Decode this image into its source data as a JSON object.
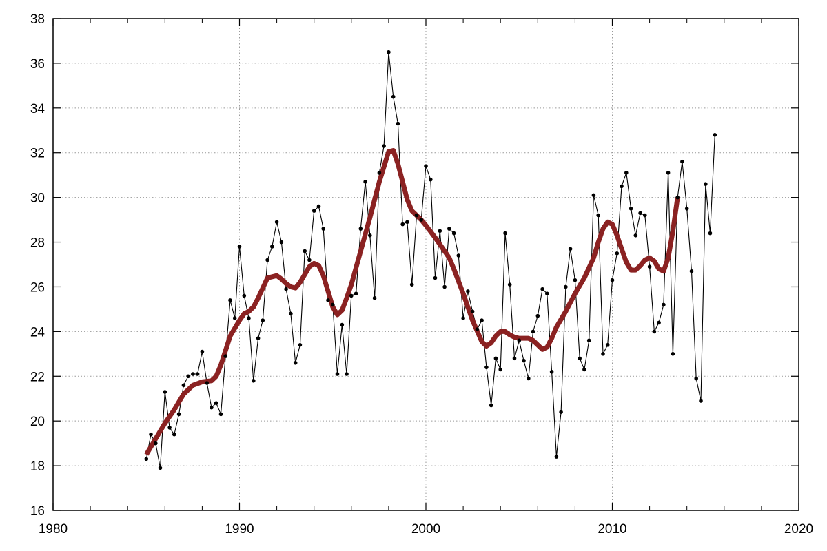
{
  "chart_data": {
    "type": "line",
    "title": "",
    "xlabel": "",
    "ylabel": "",
    "xlim": [
      1980,
      2020
    ],
    "ylim": [
      16,
      38
    ],
    "x_ticks": [
      1980,
      1990,
      2000,
      2010,
      2020
    ],
    "y_ticks": [
      16,
      18,
      20,
      22,
      24,
      26,
      28,
      30,
      32,
      34,
      36,
      38
    ],
    "x_tick_labels": [
      "1980",
      "1990",
      "2000",
      "2010",
      "2020"
    ],
    "y_tick_labels": [
      "16",
      "18",
      "20",
      "22",
      "24",
      "26",
      "28",
      "30",
      "32",
      "34",
      "36",
      "38"
    ],
    "grid": true,
    "legend": "none",
    "series": [
      {
        "style": "thin black line with dot markers",
        "color": "#000000",
        "points": [
          [
            1985.0,
            18.3
          ],
          [
            1985.25,
            19.4
          ],
          [
            1985.5,
            19.0
          ],
          [
            1985.75,
            17.9
          ],
          [
            1986.0,
            21.3
          ],
          [
            1986.25,
            19.7
          ],
          [
            1986.5,
            19.4
          ],
          [
            1986.75,
            20.3
          ],
          [
            1987.0,
            21.6
          ],
          [
            1987.25,
            22.0
          ],
          [
            1987.5,
            22.1
          ],
          [
            1987.75,
            22.1
          ],
          [
            1988.0,
            23.1
          ],
          [
            1988.25,
            21.7
          ],
          [
            1988.5,
            20.6
          ],
          [
            1988.75,
            20.8
          ],
          [
            1989.0,
            20.3
          ],
          [
            1989.25,
            22.9
          ],
          [
            1989.5,
            25.4
          ],
          [
            1989.75,
            24.6
          ],
          [
            1990.0,
            27.8
          ],
          [
            1990.25,
            25.6
          ],
          [
            1990.5,
            24.6
          ],
          [
            1990.75,
            21.8
          ],
          [
            1991.0,
            23.7
          ],
          [
            1991.25,
            24.5
          ],
          [
            1991.5,
            27.2
          ],
          [
            1991.75,
            27.8
          ],
          [
            1992.0,
            28.9
          ],
          [
            1992.25,
            28.0
          ],
          [
            1992.5,
            25.9
          ],
          [
            1992.75,
            24.8
          ],
          [
            1993.0,
            22.6
          ],
          [
            1993.25,
            23.4
          ],
          [
            1993.5,
            27.6
          ],
          [
            1993.75,
            27.2
          ],
          [
            1994.0,
            29.4
          ],
          [
            1994.25,
            29.6
          ],
          [
            1994.5,
            28.6
          ],
          [
            1994.75,
            25.4
          ],
          [
            1995.0,
            25.2
          ],
          [
            1995.25,
            22.1
          ],
          [
            1995.5,
            24.3
          ],
          [
            1995.75,
            22.1
          ],
          [
            1996.0,
            25.6
          ],
          [
            1996.25,
            25.7
          ],
          [
            1996.5,
            28.6
          ],
          [
            1996.75,
            30.7
          ],
          [
            1997.0,
            28.3
          ],
          [
            1997.25,
            25.5
          ],
          [
            1997.5,
            31.1
          ],
          [
            1997.75,
            32.3
          ],
          [
            1998.0,
            36.5
          ],
          [
            1998.25,
            34.5
          ],
          [
            1998.5,
            33.3
          ],
          [
            1998.75,
            28.8
          ],
          [
            1999.0,
            28.9
          ],
          [
            1999.25,
            26.1
          ],
          [
            1999.5,
            29.2
          ],
          [
            1999.75,
            29.0
          ],
          [
            2000.0,
            31.4
          ],
          [
            2000.25,
            30.8
          ],
          [
            2000.5,
            26.4
          ],
          [
            2000.75,
            28.5
          ],
          [
            2001.0,
            26.0
          ],
          [
            2001.25,
            28.6
          ],
          [
            2001.5,
            28.4
          ],
          [
            2001.75,
            27.4
          ],
          [
            2002.0,
            24.6
          ],
          [
            2002.25,
            25.8
          ],
          [
            2002.5,
            24.9
          ],
          [
            2002.75,
            24.1
          ],
          [
            2003.0,
            24.5
          ],
          [
            2003.25,
            22.4
          ],
          [
            2003.5,
            20.7
          ],
          [
            2003.75,
            22.8
          ],
          [
            2004.0,
            22.3
          ],
          [
            2004.25,
            28.4
          ],
          [
            2004.5,
            26.1
          ],
          [
            2004.75,
            22.8
          ],
          [
            2005.0,
            23.6
          ],
          [
            2005.25,
            22.7
          ],
          [
            2005.5,
            21.9
          ],
          [
            2005.75,
            24.0
          ],
          [
            2006.0,
            24.7
          ],
          [
            2006.25,
            25.9
          ],
          [
            2006.5,
            25.7
          ],
          [
            2006.75,
            22.2
          ],
          [
            2007.0,
            18.4
          ],
          [
            2007.25,
            20.4
          ],
          [
            2007.5,
            26.0
          ],
          [
            2007.75,
            27.7
          ],
          [
            2008.0,
            26.3
          ],
          [
            2008.25,
            22.8
          ],
          [
            2008.5,
            22.3
          ],
          [
            2008.75,
            23.6
          ],
          [
            2009.0,
            30.1
          ],
          [
            2009.25,
            29.2
          ],
          [
            2009.5,
            23.0
          ],
          [
            2009.75,
            23.4
          ],
          [
            2010.0,
            26.3
          ],
          [
            2010.25,
            27.5
          ],
          [
            2010.5,
            30.5
          ],
          [
            2010.75,
            31.1
          ],
          [
            2011.0,
            29.5
          ],
          [
            2011.25,
            28.3
          ],
          [
            2011.5,
            29.3
          ],
          [
            2011.75,
            29.2
          ],
          [
            2012.0,
            26.9
          ],
          [
            2012.25,
            24.0
          ],
          [
            2012.5,
            24.4
          ],
          [
            2012.75,
            25.2
          ],
          [
            2013.0,
            31.1
          ],
          [
            2013.25,
            23.0
          ],
          [
            2013.5,
            30.0
          ],
          [
            2013.75,
            31.6
          ],
          [
            2014.0,
            29.5
          ],
          [
            2014.25,
            26.7
          ],
          [
            2014.5,
            21.9
          ],
          [
            2014.75,
            20.9
          ],
          [
            2015.0,
            30.6
          ],
          [
            2015.25,
            28.4
          ],
          [
            2015.5,
            32.8
          ]
        ]
      },
      {
        "style": "thick dark red smoothed trend line",
        "color": "#8b2222",
        "points": [
          [
            1985.0,
            18.5
          ],
          [
            1985.5,
            19.2
          ],
          [
            1986.0,
            19.9
          ],
          [
            1986.5,
            20.5
          ],
          [
            1987.0,
            21.2
          ],
          [
            1987.5,
            21.6
          ],
          [
            1988.0,
            21.75
          ],
          [
            1988.5,
            21.8
          ],
          [
            1988.75,
            22.0
          ],
          [
            1989.0,
            22.5
          ],
          [
            1989.5,
            23.8
          ],
          [
            1990.0,
            24.5
          ],
          [
            1990.25,
            24.8
          ],
          [
            1990.5,
            24.9
          ],
          [
            1990.75,
            25.1
          ],
          [
            1991.0,
            25.5
          ],
          [
            1991.5,
            26.4
          ],
          [
            1992.0,
            26.5
          ],
          [
            1992.25,
            26.35
          ],
          [
            1992.5,
            26.15
          ],
          [
            1992.75,
            26.0
          ],
          [
            1993.0,
            25.95
          ],
          [
            1993.25,
            26.2
          ],
          [
            1993.75,
            26.9
          ],
          [
            1994.0,
            27.05
          ],
          [
            1994.25,
            26.95
          ],
          [
            1994.5,
            26.5
          ],
          [
            1994.75,
            25.8
          ],
          [
            1995.0,
            25.1
          ],
          [
            1995.25,
            24.75
          ],
          [
            1995.5,
            24.95
          ],
          [
            1995.75,
            25.5
          ],
          [
            1996.0,
            26.1
          ],
          [
            1996.5,
            27.6
          ],
          [
            1997.0,
            29.1
          ],
          [
            1997.5,
            30.7
          ],
          [
            1998.0,
            32.05
          ],
          [
            1998.25,
            32.1
          ],
          [
            1998.5,
            31.5
          ],
          [
            1998.75,
            30.7
          ],
          [
            1999.0,
            29.9
          ],
          [
            1999.25,
            29.4
          ],
          [
            1999.75,
            29.0
          ],
          [
            2000.0,
            28.75
          ],
          [
            2000.5,
            28.2
          ],
          [
            2001.0,
            27.6
          ],
          [
            2001.25,
            27.3
          ],
          [
            2001.5,
            26.8
          ],
          [
            2002.0,
            25.7
          ],
          [
            2002.5,
            24.5
          ],
          [
            2003.0,
            23.55
          ],
          [
            2003.25,
            23.35
          ],
          [
            2003.5,
            23.5
          ],
          [
            2003.75,
            23.8
          ],
          [
            2004.0,
            24.0
          ],
          [
            2004.25,
            24.0
          ],
          [
            2004.5,
            23.85
          ],
          [
            2004.75,
            23.75
          ],
          [
            2005.0,
            23.7
          ],
          [
            2005.5,
            23.7
          ],
          [
            2005.75,
            23.6
          ],
          [
            2006.0,
            23.4
          ],
          [
            2006.25,
            23.2
          ],
          [
            2006.5,
            23.3
          ],
          [
            2006.75,
            23.7
          ],
          [
            2007.0,
            24.2
          ],
          [
            2007.5,
            24.9
          ],
          [
            2007.75,
            25.3
          ],
          [
            2008.0,
            25.7
          ],
          [
            2008.5,
            26.4
          ],
          [
            2009.0,
            27.3
          ],
          [
            2009.25,
            28.0
          ],
          [
            2009.5,
            28.6
          ],
          [
            2009.75,
            28.9
          ],
          [
            2010.0,
            28.8
          ],
          [
            2010.25,
            28.3
          ],
          [
            2010.5,
            27.7
          ],
          [
            2010.75,
            27.1
          ],
          [
            2011.0,
            26.75
          ],
          [
            2011.25,
            26.75
          ],
          [
            2011.5,
            26.95
          ],
          [
            2011.75,
            27.2
          ],
          [
            2012.0,
            27.3
          ],
          [
            2012.25,
            27.15
          ],
          [
            2012.5,
            26.8
          ],
          [
            2012.75,
            26.7
          ],
          [
            2013.0,
            27.3
          ],
          [
            2013.25,
            28.5
          ],
          [
            2013.5,
            30.0
          ]
        ]
      }
    ]
  }
}
